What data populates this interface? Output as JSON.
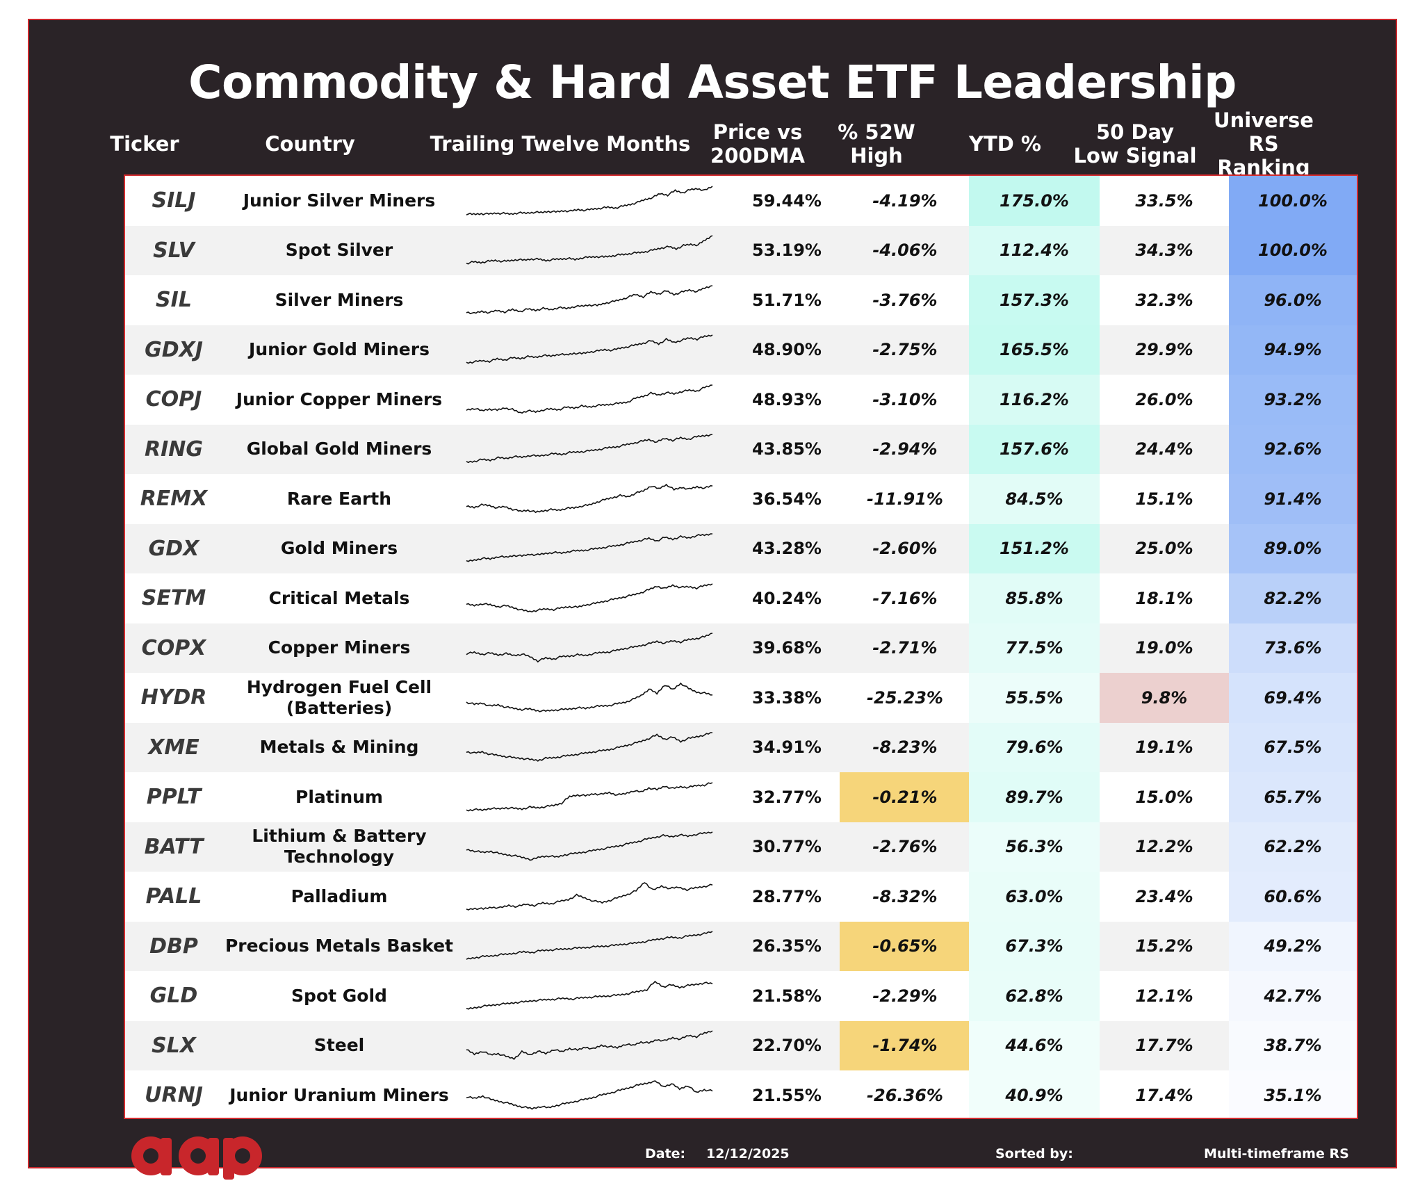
{
  "title": "Commodity & Hard Asset ETF Leadership",
  "headers": {
    "ticker": "Ticker",
    "country": "Country",
    "ttm": "Trailing Twelve Months",
    "price_vs_200dma": "Price vs 200DMA",
    "pct_52w_high": "% 52W High",
    "ytd": "YTD %",
    "low_signal": "50 Day Low Signal",
    "rs_ranking": "Universe RS Ranking"
  },
  "colors": {
    "frame_border": "#c8262b",
    "background": "#2a2327",
    "highlight_yellow": "#f6d57a",
    "signal_red": "#ecd0cf",
    "ytd_base": "#5ff0d5",
    "rs_base": "#7aa6f4",
    "logo": "#c8262b"
  },
  "footer": {
    "date_label": "Date:",
    "date_value": "12/12/2025",
    "sorted_label": "Sorted by:",
    "sorted_value": "Multi-timeframe RS"
  },
  "logo": {
    "text": "aap",
    "icon": "brand-logo-icon"
  },
  "chart_data": {
    "type": "table",
    "title": "Commodity & Hard Asset ETF Leadership",
    "columns": [
      "Ticker",
      "Country",
      "Trailing Twelve Months",
      "Price vs 200DMA",
      "% 52W High",
      "YTD %",
      "50 Day Low Signal",
      "Universe RS Ranking"
    ],
    "rows": [
      {
        "ticker": "SILJ",
        "name": "Junior Silver Miners",
        "price_vs_200dma": "59.44%",
        "pct_52w_high": "-4.19%",
        "ytd": "175.0%",
        "low_signal": "33.5%",
        "rs": "100.0%",
        "ytd_v": 175.0,
        "rs_v": 100.0,
        "hi_flag": false,
        "sig_flag": false,
        "spark": [
          0.05,
          0.04,
          0.06,
          0.05,
          0.08,
          0.07,
          0.05,
          0.09,
          0.08,
          0.11,
          0.1,
          0.14,
          0.12,
          0.16,
          0.15,
          0.2,
          0.18,
          0.22,
          0.25,
          0.28,
          0.26,
          0.32,
          0.38,
          0.45,
          0.55,
          0.62,
          0.75,
          0.7,
          0.85,
          0.78,
          0.88,
          0.92,
          0.86,
          1.0
        ]
      },
      {
        "ticker": "SLV",
        "name": "Spot Silver",
        "price_vs_200dma": "53.19%",
        "pct_52w_high": "-4.06%",
        "ytd": "112.4%",
        "low_signal": "34.3%",
        "rs": "100.0%",
        "ytd_v": 112.4,
        "rs_v": 100.0,
        "hi_flag": false,
        "sig_flag": false,
        "spark": [
          0.05,
          0.1,
          0.08,
          0.12,
          0.15,
          0.12,
          0.14,
          0.18,
          0.16,
          0.2,
          0.19,
          0.15,
          0.18,
          0.2,
          0.22,
          0.18,
          0.24,
          0.26,
          0.28,
          0.27,
          0.3,
          0.34,
          0.36,
          0.4,
          0.42,
          0.46,
          0.52,
          0.58,
          0.62,
          0.55,
          0.66,
          0.7,
          0.68,
          0.85,
          1.0
        ]
      },
      {
        "ticker": "SIL",
        "name": "Silver Miners",
        "price_vs_200dma": "51.71%",
        "pct_52w_high": "-3.76%",
        "ytd": "157.3%",
        "low_signal": "32.3%",
        "rs": "96.0%",
        "ytd_v": 157.3,
        "rs_v": 96.0,
        "hi_flag": false,
        "sig_flag": false,
        "spark": [
          0.1,
          0.05,
          0.12,
          0.08,
          0.15,
          0.1,
          0.18,
          0.12,
          0.2,
          0.16,
          0.22,
          0.18,
          0.25,
          0.22,
          0.28,
          0.3,
          0.34,
          0.32,
          0.4,
          0.45,
          0.52,
          0.6,
          0.7,
          0.62,
          0.78,
          0.72,
          0.82,
          0.7,
          0.78,
          0.85,
          0.8,
          0.92,
          1.0
        ]
      },
      {
        "ticker": "GDXJ",
        "name": "Junior Gold Miners",
        "price_vs_200dma": "48.90%",
        "pct_52w_high": "-2.75%",
        "ytd": "165.5%",
        "low_signal": "29.9%",
        "rs": "94.9%",
        "ytd_v": 165.5,
        "rs_v": 94.9,
        "hi_flag": false,
        "sig_flag": false,
        "spark": [
          0.05,
          0.08,
          0.12,
          0.1,
          0.18,
          0.15,
          0.22,
          0.2,
          0.26,
          0.24,
          0.3,
          0.28,
          0.34,
          0.32,
          0.38,
          0.36,
          0.42,
          0.45,
          0.5,
          0.48,
          0.55,
          0.6,
          0.66,
          0.72,
          0.8,
          0.7,
          0.85,
          0.75,
          0.82,
          0.9,
          0.86,
          0.95,
          1.0
        ]
      },
      {
        "ticker": "COPJ",
        "name": "Junior Copper Miners",
        "price_vs_200dma": "48.93%",
        "pct_52w_high": "-3.10%",
        "ytd": "116.2%",
        "low_signal": "26.0%",
        "rs": "93.2%",
        "ytd_v": 116.2,
        "rs_v": 93.2,
        "hi_flag": false,
        "sig_flag": false,
        "spark": [
          0.15,
          0.2,
          0.12,
          0.18,
          0.14,
          0.22,
          0.16,
          0.05,
          0.12,
          0.08,
          0.15,
          0.18,
          0.16,
          0.24,
          0.22,
          0.28,
          0.25,
          0.3,
          0.32,
          0.35,
          0.38,
          0.42,
          0.55,
          0.62,
          0.72,
          0.66,
          0.74,
          0.7,
          0.78,
          0.82,
          0.8,
          0.92,
          1.0
        ]
      },
      {
        "ticker": "RING",
        "name": "Global Gold Miners",
        "price_vs_200dma": "43.85%",
        "pct_52w_high": "-2.94%",
        "ytd": "157.6%",
        "low_signal": "24.4%",
        "rs": "92.6%",
        "ytd_v": 157.6,
        "rs_v": 92.6,
        "hi_flag": false,
        "sig_flag": false,
        "spark": [
          0.05,
          0.08,
          0.14,
          0.12,
          0.2,
          0.18,
          0.24,
          0.22,
          0.28,
          0.26,
          0.3,
          0.34,
          0.32,
          0.38,
          0.4,
          0.42,
          0.46,
          0.5,
          0.55,
          0.58,
          0.64,
          0.7,
          0.76,
          0.82,
          0.74,
          0.86,
          0.8,
          0.88,
          0.84,
          0.92,
          0.96,
          1.0
        ]
      },
      {
        "ticker": "REMX",
        "name": "Rare Earth",
        "price_vs_200dma": "36.54%",
        "pct_52w_high": "-11.91%",
        "ytd": "84.5%",
        "low_signal": "15.1%",
        "rs": "91.4%",
        "ytd_v": 84.5,
        "rs_v": 91.4,
        "hi_flag": false,
        "sig_flag": false,
        "spark": [
          0.25,
          0.22,
          0.3,
          0.28,
          0.2,
          0.24,
          0.15,
          0.08,
          0.12,
          0.05,
          0.1,
          0.14,
          0.12,
          0.18,
          0.2,
          0.26,
          0.3,
          0.4,
          0.48,
          0.55,
          0.62,
          0.58,
          0.7,
          0.78,
          0.95,
          0.85,
          1.0,
          0.82,
          0.9,
          0.84,
          0.92,
          0.88,
          0.95
        ]
      },
      {
        "ticker": "GDX",
        "name": "Gold Miners",
        "price_vs_200dma": "43.28%",
        "pct_52w_high": "-2.60%",
        "ytd": "151.2%",
        "low_signal": "25.0%",
        "rs": "89.0%",
        "ytd_v": 151.2,
        "rs_v": 89.0,
        "hi_flag": false,
        "sig_flag": false,
        "spark": [
          0.05,
          0.1,
          0.16,
          0.14,
          0.22,
          0.2,
          0.26,
          0.24,
          0.3,
          0.28,
          0.33,
          0.36,
          0.34,
          0.4,
          0.42,
          0.44,
          0.48,
          0.52,
          0.56,
          0.6,
          0.66,
          0.72,
          0.78,
          0.84,
          0.76,
          0.88,
          0.82,
          0.9,
          0.86,
          0.94,
          0.96,
          1.0
        ]
      },
      {
        "ticker": "SETM",
        "name": "Critical Metals",
        "price_vs_200dma": "40.24%",
        "pct_52w_high": "-7.16%",
        "ytd": "85.8%",
        "low_signal": "18.1%",
        "rs": "82.2%",
        "ytd_v": 85.8,
        "rs_v": 82.2,
        "hi_flag": false,
        "sig_flag": false,
        "spark": [
          0.3,
          0.26,
          0.32,
          0.28,
          0.22,
          0.25,
          0.18,
          0.1,
          0.05,
          0.1,
          0.14,
          0.12,
          0.18,
          0.22,
          0.2,
          0.28,
          0.32,
          0.38,
          0.44,
          0.5,
          0.56,
          0.62,
          0.7,
          0.8,
          0.92,
          0.84,
          0.95,
          0.88,
          0.9,
          0.86,
          0.94,
          1.0
        ]
      },
      {
        "ticker": "COPX",
        "name": "Copper Miners",
        "price_vs_200dma": "39.68%",
        "pct_52w_high": "-2.71%",
        "ytd": "77.5%",
        "low_signal": "19.0%",
        "rs": "73.6%",
        "ytd_v": 77.5,
        "rs_v": 73.6,
        "hi_flag": false,
        "sig_flag": false,
        "spark": [
          0.3,
          0.34,
          0.28,
          0.32,
          0.26,
          0.3,
          0.24,
          0.28,
          0.2,
          0.05,
          0.15,
          0.12,
          0.2,
          0.22,
          0.26,
          0.24,
          0.3,
          0.34,
          0.36,
          0.42,
          0.48,
          0.52,
          0.58,
          0.64,
          0.72,
          0.66,
          0.74,
          0.7,
          0.78,
          0.82,
          0.88,
          1.0
        ]
      },
      {
        "ticker": "HYDR",
        "name": "Hydrogen Fuel Cell (Batteries)",
        "price_vs_200dma": "33.38%",
        "pct_52w_high": "-25.23%",
        "ytd": "55.5%",
        "low_signal": "9.8%",
        "rs": "69.4%",
        "ytd_v": 55.5,
        "rs_v": 69.4,
        "hi_flag": false,
        "sig_flag": true,
        "spark": [
          0.35,
          0.28,
          0.32,
          0.22,
          0.26,
          0.18,
          0.14,
          0.1,
          0.12,
          0.06,
          0.05,
          0.08,
          0.1,
          0.12,
          0.16,
          0.14,
          0.2,
          0.22,
          0.24,
          0.3,
          0.35,
          0.45,
          0.58,
          0.8,
          0.65,
          0.95,
          0.78,
          1.0,
          0.82,
          0.7,
          0.66,
          0.6
        ]
      },
      {
        "ticker": "XME",
        "name": "Metals & Mining",
        "price_vs_200dma": "34.91%",
        "pct_52w_high": "-8.23%",
        "ytd": "79.6%",
        "low_signal": "19.1%",
        "rs": "67.5%",
        "ytd_v": 79.6,
        "rs_v": 67.5,
        "hi_flag": false,
        "sig_flag": false,
        "spark": [
          0.35,
          0.3,
          0.34,
          0.26,
          0.22,
          0.18,
          0.14,
          0.12,
          0.08,
          0.05,
          0.12,
          0.14,
          0.18,
          0.22,
          0.26,
          0.3,
          0.34,
          0.38,
          0.42,
          0.48,
          0.55,
          0.62,
          0.7,
          0.8,
          0.92,
          0.78,
          0.84,
          0.7,
          0.8,
          0.86,
          0.92,
          1.0
        ]
      },
      {
        "ticker": "PPLT",
        "name": "Platinum",
        "price_vs_200dma": "32.77%",
        "pct_52w_high": "-0.21%",
        "ytd": "89.7%",
        "low_signal": "15.0%",
        "rs": "65.7%",
        "ytd_v": 89.7,
        "rs_v": 65.7,
        "hi_flag": true,
        "sig_flag": false,
        "spark": [
          0.05,
          0.08,
          0.06,
          0.12,
          0.1,
          0.14,
          0.12,
          0.1,
          0.16,
          0.14,
          0.18,
          0.22,
          0.3,
          0.52,
          0.58,
          0.55,
          0.62,
          0.6,
          0.66,
          0.58,
          0.62,
          0.72,
          0.68,
          0.82,
          0.76,
          0.88,
          0.8,
          0.86,
          0.84,
          0.9,
          0.92,
          1.0
        ]
      },
      {
        "ticker": "BATT",
        "name": "Lithium & Battery Technology",
        "price_vs_200dma": "30.77%",
        "pct_52w_high": "-2.76%",
        "ytd": "56.3%",
        "low_signal": "12.2%",
        "rs": "62.2%",
        "ytd_v": 56.3,
        "rs_v": 62.2,
        "hi_flag": false,
        "sig_flag": false,
        "spark": [
          0.4,
          0.35,
          0.3,
          0.34,
          0.26,
          0.22,
          0.18,
          0.12,
          0.05,
          0.15,
          0.18,
          0.14,
          0.22,
          0.26,
          0.3,
          0.34,
          0.4,
          0.44,
          0.5,
          0.55,
          0.62,
          0.68,
          0.76,
          0.82,
          0.88,
          0.84,
          0.9,
          0.86,
          0.92,
          0.96,
          1.0
        ]
      },
      {
        "ticker": "PALL",
        "name": "Palladium",
        "price_vs_200dma": "28.77%",
        "pct_52w_high": "-8.32%",
        "ytd": "63.0%",
        "low_signal": "23.4%",
        "rs": "60.6%",
        "ytd_v": 63.0,
        "rs_v": 60.6,
        "hi_flag": false,
        "sig_flag": false,
        "spark": [
          0.05,
          0.1,
          0.08,
          0.14,
          0.12,
          0.2,
          0.16,
          0.24,
          0.2,
          0.28,
          0.26,
          0.34,
          0.4,
          0.55,
          0.45,
          0.35,
          0.3,
          0.38,
          0.48,
          0.58,
          0.7,
          1.0,
          0.72,
          0.86,
          0.78,
          0.82,
          0.74,
          0.8,
          0.85,
          0.9
        ]
      },
      {
        "ticker": "DBP",
        "name": "Precious Metals Basket",
        "price_vs_200dma": "26.35%",
        "pct_52w_high": "-0.65%",
        "ytd": "67.3%",
        "low_signal": "15.2%",
        "rs": "49.2%",
        "ytd_v": 67.3,
        "rs_v": 49.2,
        "hi_flag": true,
        "sig_flag": false,
        "spark": [
          0.05,
          0.1,
          0.14,
          0.16,
          0.2,
          0.22,
          0.26,
          0.3,
          0.28,
          0.34,
          0.36,
          0.38,
          0.4,
          0.42,
          0.44,
          0.46,
          0.48,
          0.5,
          0.52,
          0.56,
          0.58,
          0.62,
          0.66,
          0.72,
          0.76,
          0.8,
          0.78,
          0.84,
          0.88,
          0.92,
          1.0
        ]
      },
      {
        "ticker": "GLD",
        "name": "Spot Gold",
        "price_vs_200dma": "21.58%",
        "pct_52w_high": "-2.29%",
        "ytd": "62.8%",
        "low_signal": "12.1%",
        "rs": "42.7%",
        "ytd_v": 62.8,
        "rs_v": 42.7,
        "hi_flag": false,
        "sig_flag": false,
        "spark": [
          0.05,
          0.1,
          0.15,
          0.18,
          0.22,
          0.24,
          0.28,
          0.3,
          0.34,
          0.36,
          0.38,
          0.4,
          0.42,
          0.4,
          0.44,
          0.46,
          0.48,
          0.5,
          0.52,
          0.55,
          0.6,
          0.66,
          0.72,
          1.0,
          0.82,
          0.88,
          0.8,
          0.86,
          0.9,
          0.95,
          0.92
        ]
      },
      {
        "ticker": "SLX",
        "name": "Steel",
        "price_vs_200dma": "22.70%",
        "pct_52w_high": "-1.74%",
        "ytd": "44.6%",
        "low_signal": "17.7%",
        "rs": "38.7%",
        "ytd_v": 44.6,
        "rs_v": 38.7,
        "hi_flag": true,
        "sig_flag": false,
        "spark": [
          0.35,
          0.2,
          0.3,
          0.18,
          0.22,
          0.12,
          0.05,
          0.28,
          0.18,
          0.3,
          0.22,
          0.36,
          0.28,
          0.4,
          0.34,
          0.44,
          0.38,
          0.5,
          0.46,
          0.42,
          0.54,
          0.5,
          0.62,
          0.58,
          0.7,
          0.66,
          0.76,
          0.72,
          0.84,
          0.8,
          0.92,
          1.0
        ]
      },
      {
        "ticker": "URNJ",
        "name": "Junior Uranium Miners",
        "price_vs_200dma": "21.55%",
        "pct_52w_high": "-26.36%",
        "ytd": "40.9%",
        "low_signal": "17.4%",
        "rs": "35.1%",
        "ytd_v": 40.9,
        "rs_v": 35.1,
        "hi_flag": false,
        "sig_flag": false,
        "spark": [
          0.45,
          0.4,
          0.48,
          0.36,
          0.3,
          0.24,
          0.16,
          0.1,
          0.05,
          0.12,
          0.08,
          0.16,
          0.22,
          0.28,
          0.34,
          0.4,
          0.48,
          0.55,
          0.62,
          0.7,
          0.78,
          0.86,
          0.92,
          1.0,
          0.8,
          0.9,
          0.72,
          0.84,
          0.6,
          0.7,
          0.65
        ]
      }
    ]
  }
}
